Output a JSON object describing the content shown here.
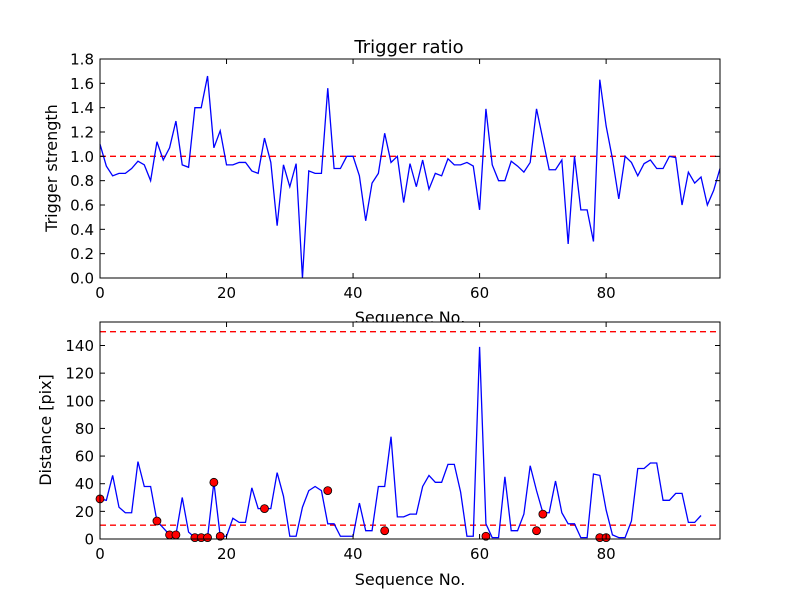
{
  "chart_data": [
    {
      "type": "line",
      "title": "Trigger ratio",
      "xlabel": "Sequence No.",
      "ylabel": "Trigger strength",
      "xlim": [
        0,
        98
      ],
      "ylim": [
        0,
        1.8
      ],
      "xticks": [
        "0",
        "20",
        "40",
        "60",
        "80"
      ],
      "yticks": [
        "0.0",
        "0.2",
        "0.4",
        "0.6",
        "0.8",
        "1.0",
        "1.2",
        "1.4",
        "1.6",
        "1.8"
      ],
      "grid": false,
      "line_color": "#0000ff",
      "threshold_color": "#ff0000",
      "thresholds": [
        1.0
      ],
      "series": [
        {
          "values": [
            1.1,
            0.92,
            0.84,
            0.86,
            0.86,
            0.9,
            0.96,
            0.93,
            0.8,
            1.12,
            0.97,
            1.07,
            1.29,
            0.93,
            0.91,
            1.4,
            1.4,
            1.66,
            1.07,
            1.21,
            0.93,
            0.93,
            0.95,
            0.95,
            0.88,
            0.86,
            1.15,
            0.95,
            0.43,
            0.93,
            0.75,
            0.94,
            0.0,
            0.88,
            0.86,
            0.86,
            1.56,
            0.9,
            0.9,
            1.0,
            1.0,
            0.84,
            0.47,
            0.78,
            0.86,
            1.19,
            0.95,
            1.0,
            0.62,
            0.94,
            0.75,
            0.97,
            0.73,
            0.86,
            0.84,
            0.98,
            0.93,
            0.93,
            0.95,
            0.92,
            0.56,
            1.39,
            0.93,
            0.8,
            0.8,
            0.96,
            0.92,
            0.87,
            0.95,
            1.39,
            1.14,
            0.89,
            0.89,
            0.97,
            0.28,
            1.0,
            0.56,
            0.56,
            0.3,
            1.63,
            1.25,
            0.98,
            0.65,
            1.0,
            0.95,
            0.84,
            0.94,
            0.97,
            0.9,
            0.9,
            1.0,
            0.99,
            0.6,
            0.87,
            0.78,
            0.83,
            0.6,
            0.72,
            0.9
          ]
        }
      ]
    },
    {
      "type": "line",
      "title": "",
      "xlabel": "Sequence No.",
      "ylabel": "Distance [pix]",
      "xlim": [
        0,
        98
      ],
      "ylim": [
        0,
        157
      ],
      "xticks": [
        "0",
        "20",
        "40",
        "60",
        "80"
      ],
      "yticks": [
        "0",
        "20",
        "40",
        "60",
        "80",
        "100",
        "120",
        "140"
      ],
      "grid": false,
      "line_color": "#0000ff",
      "marker_color": "#ff0000",
      "threshold_color": "#ff0000",
      "thresholds": [
        10,
        150
      ],
      "series": [
        {
          "values": [
            29,
            28,
            46,
            23,
            19,
            19,
            56,
            38,
            38,
            13,
            8,
            3,
            3,
            30,
            5,
            1,
            1,
            1,
            41,
            2,
            2,
            15,
            12,
            12,
            37,
            22,
            22,
            22,
            48,
            31,
            2,
            2,
            23,
            35,
            38,
            35,
            11,
            11,
            2,
            2,
            2,
            26,
            6,
            6,
            38,
            38,
            74,
            16,
            16,
            18,
            18,
            38,
            46,
            41,
            41,
            54,
            54,
            34,
            2,
            2,
            139,
            11,
            1,
            1,
            45,
            6,
            6,
            18,
            53,
            35,
            19,
            19,
            42,
            19,
            11,
            11,
            1,
            1,
            47,
            46,
            21,
            3,
            1,
            1,
            13,
            51,
            51,
            55,
            55,
            28,
            28,
            33,
            33,
            12,
            12,
            17
          ]
        }
      ],
      "markers": {
        "x": [
          0,
          9,
          11,
          12,
          15,
          16,
          17,
          18,
          19,
          26,
          36,
          45,
          61,
          69,
          70,
          79,
          80
        ],
        "y": [
          29,
          13,
          3,
          3,
          1,
          1,
          1,
          41,
          2,
          22,
          35,
          6,
          2,
          6,
          18,
          1,
          1
        ]
      }
    }
  ]
}
